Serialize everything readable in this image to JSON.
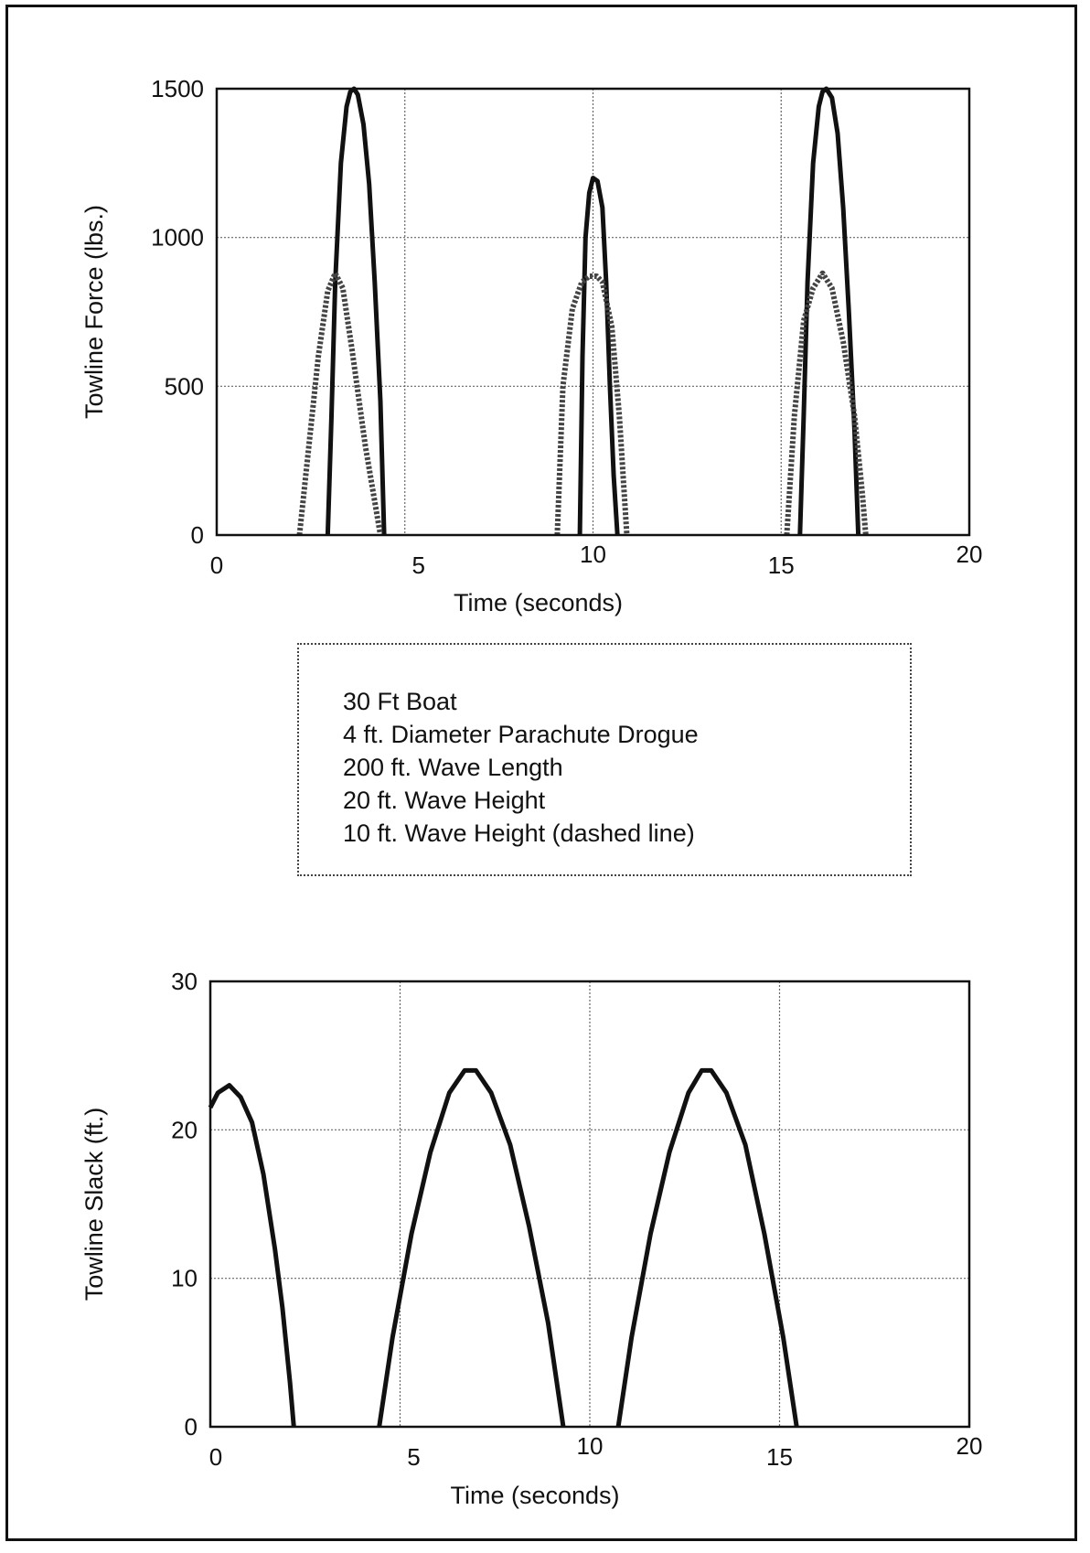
{
  "chart_data": [
    {
      "type": "line",
      "title": "",
      "xlabel": "Time (seconds)",
      "ylabel": "Towline Force (lbs.)",
      "xlim": [
        0,
        20
      ],
      "ylim": [
        0,
        1500
      ],
      "x_ticks": [
        "0",
        "5",
        "10",
        "15",
        "20"
      ],
      "y_ticks": [
        "0",
        "500",
        "1000",
        "1500"
      ],
      "grid": true,
      "series": [
        {
          "style": "solid",
          "color": "#111111",
          "segments": [
            [
              [
                2.95,
                0
              ],
              [
                3.05,
                400
              ],
              [
                3.15,
                850
              ],
              [
                3.3,
                1250
              ],
              [
                3.45,
                1440
              ],
              [
                3.55,
                1490
              ],
              [
                3.65,
                1500
              ],
              [
                3.75,
                1480
              ],
              [
                3.9,
                1380
              ],
              [
                4.05,
                1180
              ],
              [
                4.2,
                850
              ],
              [
                4.35,
                450
              ],
              [
                4.45,
                0
              ]
            ],
            [
              [
                9.65,
                0
              ],
              [
                9.72,
                600
              ],
              [
                9.8,
                1000
              ],
              [
                9.9,
                1150
              ],
              [
                10.0,
                1200
              ],
              [
                10.12,
                1190
              ],
              [
                10.25,
                1100
              ],
              [
                10.35,
                850
              ],
              [
                10.45,
                500
              ],
              [
                10.55,
                200
              ],
              [
                10.65,
                0
              ]
            ],
            [
              [
                15.5,
                0
              ],
              [
                15.6,
                400
              ],
              [
                15.7,
                850
              ],
              [
                15.85,
                1250
              ],
              [
                16.0,
                1440
              ],
              [
                16.1,
                1490
              ],
              [
                16.2,
                1500
              ],
              [
                16.35,
                1470
              ],
              [
                16.5,
                1350
              ],
              [
                16.65,
                1100
              ],
              [
                16.8,
                750
              ],
              [
                16.95,
                350
              ],
              [
                17.05,
                0
              ]
            ]
          ]
        },
        {
          "style": "dashed",
          "color": "#444444",
          "segments": [
            [
              [
                2.2,
                0
              ],
              [
                2.45,
                300
              ],
              [
                2.7,
                600
              ],
              [
                2.95,
                820
              ],
              [
                3.15,
                880
              ],
              [
                3.35,
                830
              ],
              [
                3.6,
                620
              ],
              [
                3.95,
                300
              ],
              [
                4.35,
                0
              ]
            ],
            [
              [
                9.05,
                0
              ],
              [
                9.2,
                500
              ],
              [
                9.45,
                760
              ],
              [
                9.7,
                850
              ],
              [
                9.9,
                870
              ],
              [
                10.1,
                870
              ],
              [
                10.25,
                850
              ],
              [
                10.5,
                700
              ],
              [
                10.7,
                400
              ],
              [
                10.9,
                0
              ]
            ],
            [
              [
                15.15,
                0
              ],
              [
                15.35,
                400
              ],
              [
                15.6,
                720
              ],
              [
                15.85,
                830
              ],
              [
                16.1,
                880
              ],
              [
                16.35,
                830
              ],
              [
                16.65,
                650
              ],
              [
                16.95,
                400
              ],
              [
                17.15,
                150
              ],
              [
                17.25,
                0
              ]
            ]
          ]
        }
      ]
    },
    {
      "type": "line",
      "title": "",
      "xlabel": "Time (seconds)",
      "ylabel": "Towline Slack (ft.)",
      "xlim": [
        0,
        20
      ],
      "ylim": [
        0,
        30
      ],
      "x_ticks": [
        "0",
        "5",
        "10",
        "15",
        "20"
      ],
      "y_ticks": [
        "0",
        "10",
        "20",
        "30"
      ],
      "grid": true,
      "series": [
        {
          "style": "solid",
          "color": "#111111",
          "segments": [
            [
              [
                0,
                21.5
              ],
              [
                0.2,
                22.5
              ],
              [
                0.5,
                23
              ],
              [
                0.8,
                22.2
              ],
              [
                1.1,
                20.5
              ],
              [
                1.4,
                17
              ],
              [
                1.7,
                12
              ],
              [
                1.9,
                8
              ],
              [
                2.1,
                3
              ],
              [
                2.2,
                0
              ]
            ],
            [
              [
                4.45,
                0
              ],
              [
                4.8,
                6
              ],
              [
                5.3,
                13
              ],
              [
                5.8,
                18.5
              ],
              [
                6.3,
                22.5
              ],
              [
                6.7,
                24
              ],
              [
                7.0,
                24
              ],
              [
                7.4,
                22.5
              ],
              [
                7.9,
                19
              ],
              [
                8.4,
                13.5
              ],
              [
                8.9,
                7
              ],
              [
                9.3,
                0
              ]
            ],
            [
              [
                10.75,
                0
              ],
              [
                11.1,
                6
              ],
              [
                11.6,
                13
              ],
              [
                12.1,
                18.5
              ],
              [
                12.6,
                22.5
              ],
              [
                12.95,
                24
              ],
              [
                13.2,
                24
              ],
              [
                13.6,
                22.5
              ],
              [
                14.1,
                19
              ],
              [
                14.6,
                13
              ],
              [
                15.1,
                6
              ],
              [
                15.45,
                0
              ]
            ]
          ]
        }
      ]
    }
  ],
  "legend": {
    "lines": [
      "30 Ft Boat",
      "4 ft. Diameter Parachute Drogue",
      "200 ft. Wave Length",
      "20 ft. Wave Height",
      "10 ft. Wave Height (dashed line)"
    ]
  }
}
